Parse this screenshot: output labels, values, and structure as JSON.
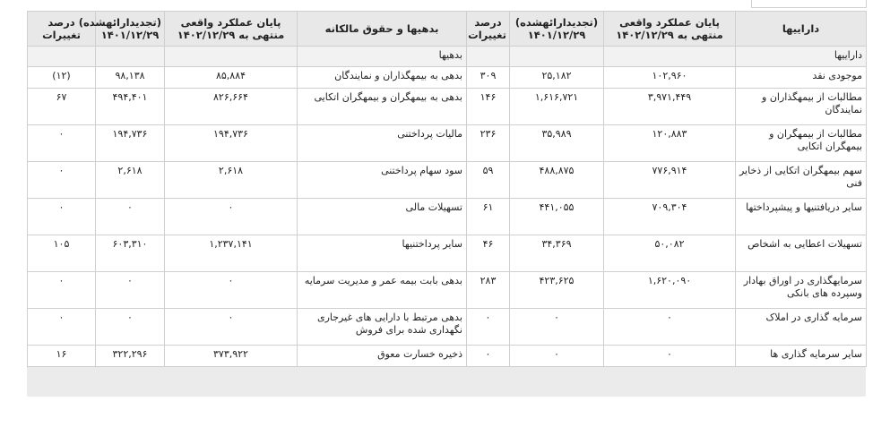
{
  "headers": {
    "assets": "داراییها",
    "assets_actual": "پایان عملکرد واقعی منتهی به ۱۴۰۲/۱۲/۲۹",
    "assets_restated": "(تجدیدارائهشده) ۱۴۰۱/۱۲/۲۹",
    "assets_change": "درصد تغییرات",
    "liab": "بدهیها و حقوق مالکانه",
    "liab_actual": "پایان عملکرد واقعی منتهی به ۱۴۰۲/۱۲/۲۹",
    "liab_restated": "(تجدیدارائهشده) ۱۴۰۱/۱۲/۲۹",
    "liab_change": "درصد تغییرات"
  },
  "section": {
    "assets_label": "داراییها",
    "liab_label": "بدهیها"
  },
  "rows": [
    {
      "asset": "موجودی نقد",
      "a_act": "۱۰۲,۹۶۰",
      "a_prev": "۲۵,۱۸۲",
      "a_chg": "۳۰۹",
      "liab": "بدهی به بیمهگذاران و نمایندگان",
      "l_act": "۸۵,۸۸۴",
      "l_prev": "۹۸,۱۳۸",
      "l_chg": "(۱۲)"
    },
    {
      "asset": "مطالبات از بیمهگذاران و نمایندگان",
      "a_act": "۳,۹۷۱,۴۴۹",
      "a_prev": "۱,۶۱۶,۷۲۱",
      "a_chg": "۱۴۶",
      "liab": "بدهی به بیمهگران و بیمهگران اتکایی",
      "l_act": "۸۲۶,۶۶۴",
      "l_prev": "۴۹۴,۴۰۱",
      "l_chg": "۶۷"
    },
    {
      "asset": "مطالبات از بیمهگران و بیمهگران اتکایی",
      "a_act": "۱۲۰,۸۸۳",
      "a_prev": "۳۵,۹۸۹",
      "a_chg": "۲۳۶",
      "liab": "مالیات پرداختنی",
      "l_act": "۱۹۴,۷۳۶",
      "l_prev": "۱۹۴,۷۳۶",
      "l_chg": "۰"
    },
    {
      "asset": "سهم بیمهگران اتکایی از ذخایر فنی",
      "a_act": "۷۷۶,۹۱۴",
      "a_prev": "۴۸۸,۸۷۵",
      "a_chg": "۵۹",
      "liab": "سود سهام پرداختنی",
      "l_act": "۲,۶۱۸",
      "l_prev": "۲,۶۱۸",
      "l_chg": "۰"
    },
    {
      "asset": "سایر دریافتنیها و پیشپرداختها",
      "a_act": "۷۰۹,۳۰۴",
      "a_prev": "۴۴۱,۰۵۵",
      "a_chg": "۶۱",
      "liab": "تسهیلات مالی",
      "l_act": "۰",
      "l_prev": "۰",
      "l_chg": "۰"
    },
    {
      "asset": "تسهیلات اعطایی به اشخاص",
      "a_act": "۵۰,۰۸۲",
      "a_prev": "۳۴,۳۶۹",
      "a_chg": "۴۶",
      "liab": "سایر پرداختنیها",
      "l_act": "۱,۲۳۷,۱۴۱",
      "l_prev": "۶۰۳,۳۱۰",
      "l_chg": "۱۰۵"
    },
    {
      "asset": "سرمایهگذاری در اوراق بهادار وسپرده های بانکی",
      "a_act": "۱,۶۲۰,۰۹۰",
      "a_prev": "۴۲۳,۶۲۵",
      "a_chg": "۲۸۳",
      "liab": "بدهی بابت بیمه عمر و مدیریت سرمایه",
      "l_act": "۰",
      "l_prev": "۰",
      "l_chg": "۰"
    },
    {
      "asset": "سرمایه گذاری در املاک",
      "a_act": "۰",
      "a_prev": "۰",
      "a_chg": "۰",
      "liab": "بدهی مرتبط با دارایی های غیرجاری نگهداری شده برای فروش",
      "l_act": "۰",
      "l_prev": "۰",
      "l_chg": "۰"
    },
    {
      "asset": "سایر سرمایه گذاری ها",
      "a_act": "۰",
      "a_prev": "۰",
      "a_chg": "۰",
      "liab": "ذخیره خسارت معوق",
      "l_act": "۳۷۳,۹۲۲",
      "l_prev": "۳۲۲,۲۹۶",
      "l_chg": "۱۶"
    }
  ]
}
